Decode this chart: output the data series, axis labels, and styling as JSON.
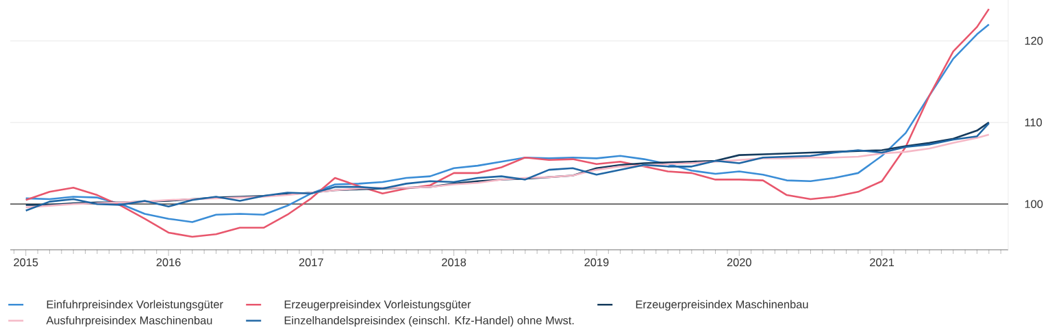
{
  "chart_data": {
    "type": "line",
    "x": [
      "2015-01",
      "2015-03",
      "2015-05",
      "2015-07",
      "2015-09",
      "2015-11",
      "2016-01",
      "2016-03",
      "2016-05",
      "2016-07",
      "2016-09",
      "2016-11",
      "2017-01",
      "2017-03",
      "2017-05",
      "2017-07",
      "2017-09",
      "2017-11",
      "2018-01",
      "2018-03",
      "2018-05",
      "2018-07",
      "2018-09",
      "2018-11",
      "2019-01",
      "2019-03",
      "2019-05",
      "2019-07",
      "2019-09",
      "2019-11",
      "2020-01",
      "2020-03",
      "2020-05",
      "2020-07",
      "2020-09",
      "2020-11",
      "2021-01",
      "2021-03",
      "2021-05",
      "2021-07",
      "2021-09",
      "2021-10"
    ],
    "series": [
      {
        "name": "Einfuhrpreisindex Vorleistungsgüter",
        "color": "#3a8dd6",
        "values": [
          100.7,
          100.6,
          100.9,
          100.8,
          100.0,
          98.8,
          98.2,
          97.8,
          98.7,
          98.8,
          98.7,
          99.8,
          101.3,
          102.4,
          102.5,
          102.7,
          103.2,
          103.4,
          104.4,
          104.7,
          105.2,
          105.7,
          105.6,
          105.7,
          105.6,
          105.9,
          105.5,
          104.9,
          104.1,
          103.7,
          104.0,
          103.6,
          102.9,
          102.8,
          103.2,
          103.8,
          105.9,
          108.7,
          113.3,
          117.8,
          120.8,
          122.0
        ]
      },
      {
        "name": "Erzeugerpreisindex Vorleistungsgüter",
        "color": "#e8566c",
        "values": [
          100.5,
          101.5,
          102.0,
          101.1,
          99.8,
          98.2,
          96.5,
          96.0,
          96.3,
          97.1,
          97.1,
          98.7,
          100.7,
          103.2,
          102.2,
          101.3,
          101.9,
          102.3,
          103.8,
          103.8,
          104.5,
          105.7,
          105.4,
          105.5,
          104.9,
          105.2,
          104.6,
          104.0,
          103.8,
          103.0,
          103.0,
          102.9,
          101.1,
          100.6,
          100.9,
          101.5,
          102.8,
          107.0,
          113.3,
          118.7,
          121.7,
          123.9
        ]
      },
      {
        "name": "Erzeugerpreisindex Maschinenbau",
        "color": "#143a5c",
        "values": [
          99.9,
          99.9,
          100.1,
          100.2,
          100.2,
          100.3,
          100.4,
          100.6,
          100.8,
          100.9,
          101.0,
          101.2,
          101.4,
          101.7,
          101.8,
          101.9,
          102.0,
          102.1,
          102.5,
          102.8,
          103.0,
          103.1,
          103.3,
          103.5,
          104.4,
          104.8,
          105.0,
          105.1,
          105.2,
          105.3,
          106.0,
          106.1,
          106.2,
          106.3,
          106.4,
          106.5,
          106.6,
          107.1,
          107.5,
          108.0,
          109.0,
          110.0
        ]
      },
      {
        "name": "Ausfuhrpreisindex Maschinenbau",
        "color": "#f5b8c6",
        "values": [
          99.6,
          99.8,
          100.0,
          100.1,
          100.2,
          100.3,
          100.5,
          100.6,
          100.7,
          100.8,
          100.9,
          101.1,
          101.4,
          101.7,
          101.9,
          102.0,
          102.0,
          102.1,
          102.4,
          102.6,
          103.0,
          103.2,
          103.3,
          103.5,
          104.2,
          104.6,
          104.7,
          104.9,
          105.0,
          105.2,
          105.4,
          105.6,
          105.6,
          105.7,
          105.7,
          105.8,
          106.2,
          106.4,
          106.8,
          107.5,
          108.1,
          108.5
        ]
      },
      {
        "name": "Einzelhandelspreisindex (einschl. Kfz-Handel) ohne Mwst.",
        "color": "#1f66a4",
        "values": [
          99.2,
          100.3,
          100.6,
          100.0,
          99.9,
          100.4,
          99.7,
          100.5,
          100.9,
          100.4,
          101.0,
          101.4,
          101.3,
          102.1,
          102.1,
          101.9,
          102.5,
          102.8,
          102.7,
          103.2,
          103.4,
          103.0,
          104.2,
          104.4,
          103.6,
          104.2,
          104.8,
          104.6,
          104.6,
          105.3,
          105.0,
          105.7,
          105.8,
          105.9,
          106.3,
          106.6,
          106.3,
          107.0,
          107.3,
          107.9,
          108.3,
          109.9
        ]
      }
    ],
    "xlim": [
      "2014-11-22",
      "2021-11-20"
    ],
    "xticks": [
      {
        "value": "2015",
        "label": "2015"
      },
      {
        "value": "2016",
        "label": "2016"
      },
      {
        "value": "2017",
        "label": "2017"
      },
      {
        "value": "2018",
        "label": "2018"
      },
      {
        "value": "2019",
        "label": "2019"
      },
      {
        "value": "2020",
        "label": "2020"
      },
      {
        "value": "2021",
        "label": "2021"
      },
      {
        "value": "2014-12",
        "label": null
      },
      {
        "value": "2015-02",
        "label": null
      },
      {
        "value": "2015-03",
        "label": null
      },
      {
        "value": "2015-04",
        "label": null
      },
      {
        "value": "2015-05",
        "label": null
      },
      {
        "value": "2015-06",
        "label": null
      },
      {
        "value": "2015-07",
        "label": null
      },
      {
        "value": "2015-08",
        "label": null
      },
      {
        "value": "2015-09",
        "label": null
      },
      {
        "value": "2015-10",
        "label": null
      },
      {
        "value": "2015-11",
        "label": null
      },
      {
        "value": "2015-12",
        "label": null
      },
      {
        "value": "2016-02",
        "label": null
      },
      {
        "value": "2016-03",
        "label": null
      },
      {
        "value": "2016-04",
        "label": null
      },
      {
        "value": "2016-05",
        "label": null
      },
      {
        "value": "2016-06",
        "label": null
      },
      {
        "value": "2016-07",
        "label": null
      },
      {
        "value": "2016-08",
        "label": null
      },
      {
        "value": "2016-09",
        "label": null
      },
      {
        "value": "2016-10",
        "label": null
      },
      {
        "value": "2016-11",
        "label": null
      },
      {
        "value": "2016-12",
        "label": null
      },
      {
        "value": "2017-02",
        "label": null
      },
      {
        "value": "2017-03",
        "label": null
      },
      {
        "value": "2017-04",
        "label": null
      },
      {
        "value": "2017-05",
        "label": null
      },
      {
        "value": "2017-06",
        "label": null
      },
      {
        "value": "2017-07",
        "label": null
      },
      {
        "value": "2017-08",
        "label": null
      },
      {
        "value": "2017-09",
        "label": null
      },
      {
        "value": "2017-10",
        "label": null
      },
      {
        "value": "2017-11",
        "label": null
      },
      {
        "value": "2017-12",
        "label": null
      },
      {
        "value": "2018-02",
        "label": null
      },
      {
        "value": "2018-03",
        "label": null
      },
      {
        "value": "2018-04",
        "label": null
      },
      {
        "value": "2018-05",
        "label": null
      },
      {
        "value": "2018-06",
        "label": null
      },
      {
        "value": "2018-07",
        "label": null
      },
      {
        "value": "2018-08",
        "label": null
      },
      {
        "value": "2018-09",
        "label": null
      },
      {
        "value": "2018-10",
        "label": null
      },
      {
        "value": "2018-11",
        "label": null
      },
      {
        "value": "2018-12",
        "label": null
      },
      {
        "value": "2019-02",
        "label": null
      },
      {
        "value": "2019-03",
        "label": null
      },
      {
        "value": "2019-04",
        "label": null
      },
      {
        "value": "2019-05",
        "label": null
      },
      {
        "value": "2019-06",
        "label": null
      },
      {
        "value": "2019-07",
        "label": null
      },
      {
        "value": "2019-08",
        "label": null
      },
      {
        "value": "2019-09",
        "label": null
      },
      {
        "value": "2019-10",
        "label": null
      },
      {
        "value": "2019-11",
        "label": null
      },
      {
        "value": "2019-12",
        "label": null
      },
      {
        "value": "2020-02",
        "label": null
      },
      {
        "value": "2020-03",
        "label": null
      },
      {
        "value": "2020-04",
        "label": null
      },
      {
        "value": "2020-05",
        "label": null
      },
      {
        "value": "2020-06",
        "label": null
      },
      {
        "value": "2020-07",
        "label": null
      },
      {
        "value": "2020-08",
        "label": null
      },
      {
        "value": "2020-09",
        "label": null
      },
      {
        "value": "2020-10",
        "label": null
      },
      {
        "value": "2020-11",
        "label": null
      },
      {
        "value": "2020-12",
        "label": null
      },
      {
        "value": "2021-02",
        "label": null
      },
      {
        "value": "2021-03",
        "label": null
      },
      {
        "value": "2021-04",
        "label": null
      },
      {
        "value": "2021-05",
        "label": null
      },
      {
        "value": "2021-06",
        "label": null
      },
      {
        "value": "2021-07",
        "label": null
      },
      {
        "value": "2021-08",
        "label": null
      },
      {
        "value": "2021-09",
        "label": null
      },
      {
        "value": "2021-10",
        "label": null
      },
      {
        "value": "2021-11",
        "label": null
      }
    ],
    "ylim": [
      94.4,
      125
    ],
    "yticks": [
      100,
      110,
      120
    ],
    "ref_lines": [
      {
        "axis": "y",
        "value": 100,
        "color": "#222222"
      }
    ],
    "grid": "y",
    "legend": "bottom",
    "marker": "none",
    "line_style": "solid"
  }
}
